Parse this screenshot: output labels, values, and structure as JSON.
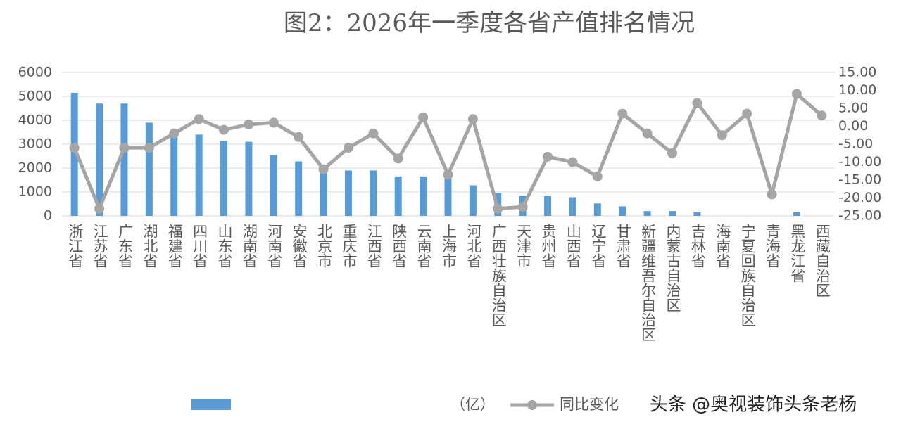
{
  "chart_data": {
    "type": "bar-line",
    "title": "图2：2026年一季度各省产值排名情况",
    "categories": [
      "浙江省",
      "江苏省",
      "广东省",
      "湖北省",
      "福建省",
      "四川省",
      "山东省",
      "湖南省",
      "河南省",
      "安徽省",
      "北京市",
      "重庆市",
      "江西省",
      "陕西省",
      "云南省",
      "上海市",
      "河北省",
      "广西壮族自治区",
      "天津市",
      "贵州省",
      "山西省",
      "辽宁省",
      "甘肃省",
      "新疆维吾尔自治区",
      "内蒙古自治区",
      "吉林省",
      "海南省",
      "宁夏回族自治区",
      "青海省",
      "黑龙江省",
      "西藏自治区"
    ],
    "series": [
      {
        "name": "（亿）",
        "type": "bar",
        "color": "#5b9bd5",
        "values": [
          5150,
          4700,
          4700,
          3900,
          3500,
          3400,
          3150,
          3100,
          2550,
          2280,
          1950,
          1900,
          1900,
          1650,
          1650,
          1600,
          1280,
          970,
          850,
          850,
          780,
          520,
          400,
          200,
          200,
          150,
          null,
          null,
          null,
          150,
          null
        ]
      },
      {
        "name": "同比变化",
        "type": "line",
        "axis": "y2",
        "color": "#a5a5a5",
        "values": [
          -6,
          -23,
          -6,
          -6,
          -2,
          2,
          -1,
          0.5,
          1,
          -3,
          -12,
          -6,
          -2,
          -9,
          2.5,
          -13.5,
          2,
          -23,
          -22.5,
          -8.5,
          -10,
          -14,
          3.5,
          -2,
          -7.5,
          6.5,
          -2.5,
          3.5,
          -19,
          9,
          3
        ]
      }
    ],
    "ylim": [
      0,
      6000
    ],
    "yticks": [
      0,
      1000,
      2000,
      3000,
      4000,
      5000,
      6000
    ],
    "y2lim": [
      -25,
      15
    ],
    "y2ticks": [
      {
        "value": -25,
        "label": "-25.00"
      },
      {
        "value": -20,
        "label": "-20.00"
      },
      {
        "value": -15,
        "label": "-15.00"
      },
      {
        "value": -10,
        "label": "-10.00"
      },
      {
        "value": -5,
        "label": "-5.00"
      },
      {
        "value": 0,
        "label": "0.00"
      },
      {
        "value": 5,
        "label": "5.00"
      },
      {
        "value": 10,
        "label": "10.00"
      },
      {
        "value": 15,
        "label": "15.00"
      }
    ],
    "grid": true,
    "annotation": "头条 @奥视装饰头条老杨"
  }
}
